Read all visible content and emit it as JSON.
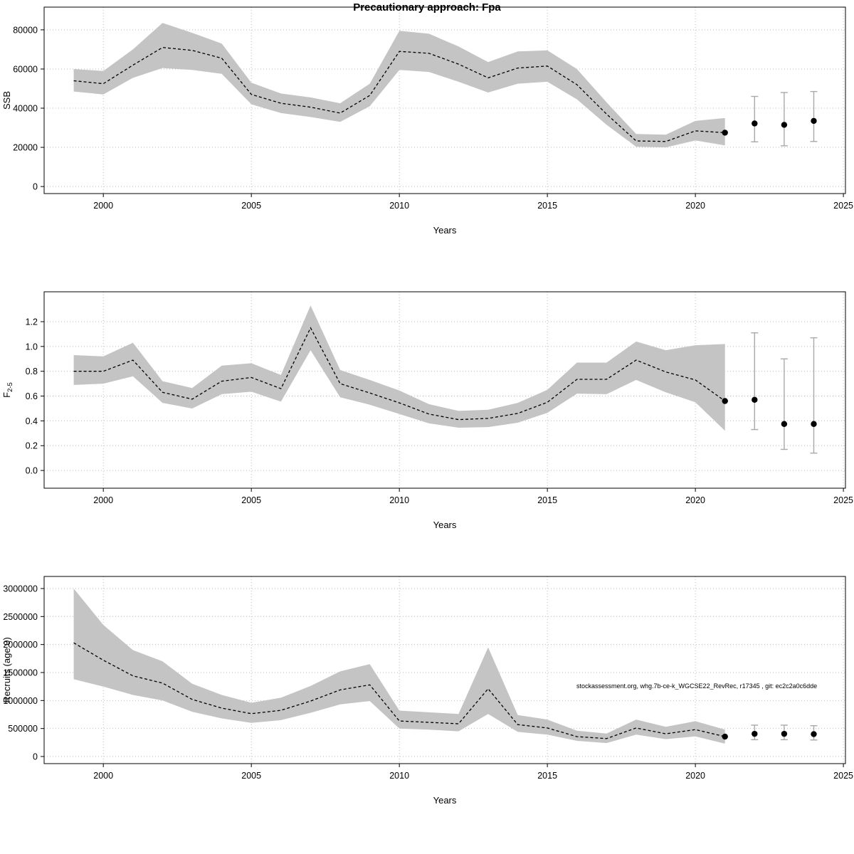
{
  "title": "Precautionary approach: Fpa",
  "annotation": {
    "text": "stockassessment.org, whg.7b-ce-k_WGCSE22_RevRec, r17345 , git: ec2c2a0c6dde"
  },
  "colors": {
    "band": "#c4c4c4",
    "line": "#000000",
    "errorbar": "#a9a9a9",
    "grid": "#bdbdbd"
  },
  "chart_data": [
    {
      "type": "line",
      "name": "ssb",
      "title": "Precautionary approach: Fpa",
      "xlabel": "Years",
      "ylabel": "SSB",
      "grid": true,
      "legend": null,
      "xlim": [
        1998,
        2025.07
      ],
      "ylim": [
        -3600,
        91600
      ],
      "xticks": [
        2000,
        2005,
        2010,
        2015,
        2020,
        2025
      ],
      "xtick_labels": [
        "2000",
        "2005",
        "2010",
        "2015",
        "2020",
        "2025"
      ],
      "yticks": [
        0,
        20000,
        40000,
        60000,
        80000
      ],
      "ytick_labels": [
        "0",
        "20000",
        "40000",
        "60000",
        "80000"
      ],
      "x": [
        1999,
        2000,
        2001,
        2002,
        2003,
        2004,
        2005,
        2006,
        2007,
        2008,
        2009,
        2010,
        2011,
        2012,
        2013,
        2014,
        2015,
        2016,
        2017,
        2018,
        2019,
        2020,
        2021
      ],
      "values": [
        54000,
        52500,
        62000,
        71000,
        69500,
        65500,
        47000,
        42500,
        40500,
        37500,
        46500,
        69000,
        68000,
        62500,
        55500,
        60500,
        61500,
        52000,
        37000,
        23300,
        23000,
        28400,
        27500
      ],
      "band": {
        "lower": [
          48500,
          47000,
          55500,
          60500,
          59500,
          57500,
          42000,
          37500,
          35500,
          33000,
          41000,
          59500,
          58500,
          53500,
          48000,
          52500,
          53500,
          44500,
          31500,
          20300,
          20000,
          23500,
          21000
        ],
        "upper": [
          60000,
          59000,
          70000,
          83500,
          78500,
          73000,
          53000,
          47500,
          45500,
          42500,
          52500,
          79500,
          78000,
          71500,
          63500,
          69000,
          69500,
          60000,
          43000,
          26800,
          26500,
          33500,
          35000
        ]
      },
      "forecast": {
        "x": [
          2022,
          2023,
          2024
        ],
        "values": [
          32200,
          31500,
          33500
        ],
        "lower": [
          22800,
          20800,
          23000
        ],
        "upper": [
          46000,
          48000,
          48500
        ]
      }
    },
    {
      "type": "line",
      "name": "fbar",
      "title": "",
      "xlabel": "Years",
      "ylabel": "F2-5",
      "ylabel_main": "F",
      "ylabel_sub": "2-5",
      "grid": true,
      "legend": null,
      "xlim": [
        1998,
        2025.07
      ],
      "ylim": [
        -0.143,
        1.441
      ],
      "xticks": [
        2000,
        2005,
        2010,
        2015,
        2020,
        2025
      ],
      "xtick_labels": [
        "2000",
        "2005",
        "2010",
        "2015",
        "2020",
        "2025"
      ],
      "yticks": [
        0.0,
        0.2,
        0.4,
        0.6,
        0.8,
        1.0,
        1.2
      ],
      "ytick_labels": [
        "0.0",
        "0.2",
        "0.4",
        "0.6",
        "0.8",
        "1.0",
        "1.2"
      ],
      "x": [
        1999,
        2000,
        2001,
        2002,
        2003,
        2004,
        2005,
        2006,
        2007,
        2008,
        2009,
        2010,
        2011,
        2012,
        2013,
        2014,
        2015,
        2016,
        2017,
        2018,
        2019,
        2020,
        2021
      ],
      "values": [
        0.8,
        0.8,
        0.89,
        0.63,
        0.575,
        0.72,
        0.75,
        0.66,
        1.15,
        0.7,
        0.625,
        0.545,
        0.455,
        0.41,
        0.42,
        0.46,
        0.55,
        0.735,
        0.735,
        0.89,
        0.795,
        0.73,
        0.56
      ],
      "band": {
        "lower": [
          0.69,
          0.7,
          0.76,
          0.545,
          0.5,
          0.615,
          0.635,
          0.555,
          0.97,
          0.59,
          0.53,
          0.455,
          0.38,
          0.345,
          0.35,
          0.385,
          0.465,
          0.62,
          0.615,
          0.73,
          0.63,
          0.55,
          0.32
        ],
        "upper": [
          0.93,
          0.92,
          1.03,
          0.72,
          0.665,
          0.845,
          0.865,
          0.77,
          1.33,
          0.81,
          0.73,
          0.645,
          0.535,
          0.48,
          0.49,
          0.545,
          0.65,
          0.87,
          0.87,
          1.04,
          0.97,
          1.01,
          1.02
        ]
      },
      "forecast": {
        "x": [
          2022,
          2023,
          2024
        ],
        "values": [
          0.57,
          0.375,
          0.375
        ],
        "lower": [
          0.33,
          0.17,
          0.14
        ],
        "upper": [
          1.11,
          0.9,
          1.07
        ]
      }
    },
    {
      "type": "line",
      "name": "recruits",
      "title": "",
      "xlabel": "Years",
      "ylabel": "Recruits (age 0)",
      "grid": true,
      "legend": null,
      "xlim": [
        1998,
        2025.07
      ],
      "ylim": [
        -127000,
        3216000
      ],
      "xticks": [
        2000,
        2005,
        2010,
        2015,
        2020,
        2025
      ],
      "xtick_labels": [
        "2000",
        "2005",
        "2010",
        "2015",
        "2020",
        "2025"
      ],
      "yticks": [
        0,
        500000,
        1000000,
        1500000,
        2000000,
        2500000,
        3000000
      ],
      "ytick_labels": [
        "0",
        "500000",
        "1000000",
        "1500000",
        "2000000",
        "2500000",
        "3000000"
      ],
      "x": [
        1999,
        2000,
        2001,
        2002,
        2003,
        2004,
        2005,
        2006,
        2007,
        2008,
        2009,
        2010,
        2011,
        2012,
        2013,
        2014,
        2015,
        2016,
        2017,
        2018,
        2019,
        2020,
        2021
      ],
      "values": [
        2030000,
        1720000,
        1440000,
        1310000,
        1020000,
        865000,
        765000,
        825000,
        990000,
        1190000,
        1280000,
        635000,
        610000,
        585000,
        1210000,
        570000,
        510000,
        355000,
        320000,
        510000,
        405000,
        480000,
        355000
      ],
      "band": {
        "lower": [
          1380000,
          1250000,
          1100000,
          1000000,
          800000,
          680000,
          600000,
          650000,
          780000,
          930000,
          990000,
          500000,
          480000,
          450000,
          760000,
          440000,
          390000,
          280000,
          240000,
          390000,
          310000,
          360000,
          230000
        ],
        "upper": [
          3000000,
          2350000,
          1900000,
          1700000,
          1300000,
          1100000,
          960000,
          1050000,
          1260000,
          1520000,
          1650000,
          820000,
          790000,
          760000,
          1950000,
          740000,
          660000,
          460000,
          410000,
          660000,
          530000,
          630000,
          480000
        ]
      },
      "forecast": {
        "x": [
          2022,
          2023,
          2024
        ],
        "values": [
          405000,
          405000,
          400000
        ],
        "lower": [
          300000,
          300000,
          295000
        ],
        "upper": [
          560000,
          560000,
          550000
        ]
      }
    }
  ]
}
